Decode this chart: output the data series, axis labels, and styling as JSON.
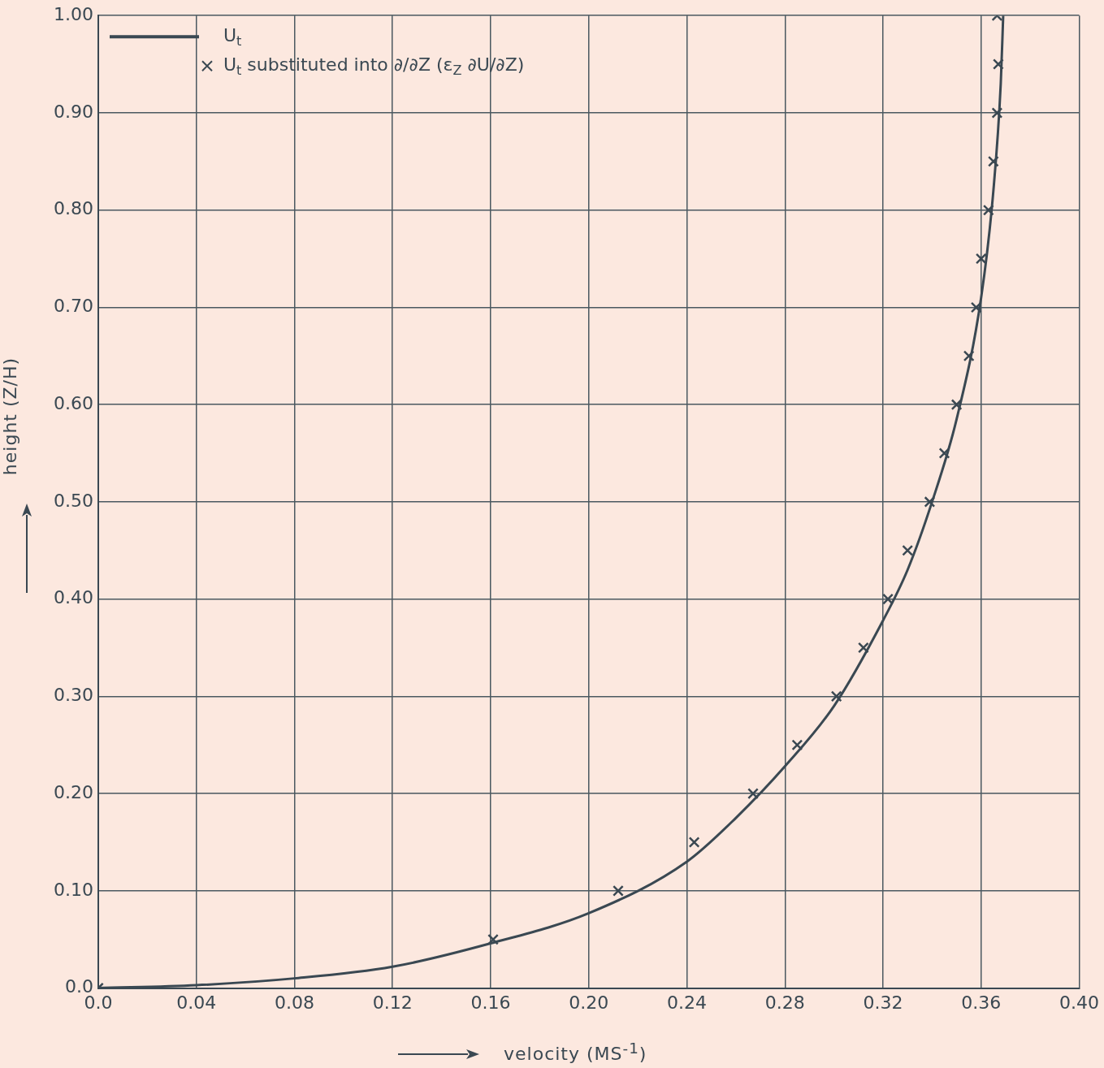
{
  "chart_data": {
    "type": "line",
    "xlabel": "velocity (MS$^{-1}$)",
    "ylabel": "height (Z/H)",
    "xlim": [
      0,
      0.4
    ],
    "ylim": [
      0,
      1
    ],
    "xticks": [
      {
        "value": 0,
        "label": "0.0"
      },
      {
        "value": 0.04,
        "label": "0.04"
      },
      {
        "value": 0.08,
        "label": "0.08"
      },
      {
        "value": 0.12,
        "label": "0.12"
      },
      {
        "value": 0.16,
        "label": "0.16"
      },
      {
        "value": 0.2,
        "label": "0.20"
      },
      {
        "value": 0.24,
        "label": "0.24"
      },
      {
        "value": 0.28,
        "label": "0.28"
      },
      {
        "value": 0.32,
        "label": "0.32"
      },
      {
        "value": 0.36,
        "label": "0.36"
      },
      {
        "value": 0.4,
        "label": "0.40"
      }
    ],
    "yticks": [
      {
        "value": 0,
        "label": "0.0"
      },
      {
        "value": 0.1,
        "label": "0.10"
      },
      {
        "value": 0.2,
        "label": "0.20"
      },
      {
        "value": 0.3,
        "label": "0.30"
      },
      {
        "value": 0.4,
        "label": "0.40"
      },
      {
        "value": 0.5,
        "label": "0.50"
      },
      {
        "value": 0.6,
        "label": "0.60"
      },
      {
        "value": 0.7,
        "label": "0.70"
      },
      {
        "value": 0.8,
        "label": "0.80"
      },
      {
        "value": 0.9,
        "label": "0.90"
      },
      {
        "value": 1,
        "label": "1.00"
      }
    ],
    "grid": true,
    "legend": "top left",
    "series": [
      {
        "name": "U$_{t}$",
        "marker": "none",
        "line_style": "solid",
        "color": "#3a4852",
        "x": [
          0,
          0.04,
          0.08,
          0.12,
          0.16,
          0.2,
          0.24,
          0.26,
          0.28,
          0.3,
          0.32,
          0.33,
          0.34,
          0.35,
          0.36,
          0.365,
          0.368,
          0.369
        ],
        "values": [
          0,
          0.003,
          0.01,
          0.022,
          0.046,
          0.077,
          0.13,
          0.175,
          0.228,
          0.29,
          0.378,
          0.43,
          0.5,
          0.585,
          0.71,
          0.82,
          0.93,
          1
        ]
      },
      {
        "name": "U$_{t}$ substituted into ∂/∂Z (ε$_{Z}$ ∂U/∂Z)",
        "type": "scatter",
        "marker": "cross",
        "color": "#3a4852",
        "x": [
          0,
          0.161,
          0.212,
          0.243,
          0.267,
          0.285,
          0.301,
          0.312,
          0.322,
          0.33,
          0.339,
          0.345,
          0.35,
          0.355,
          0.358,
          0.36,
          0.363,
          0.365,
          0.3665,
          0.367,
          0.3665
        ],
        "values": [
          0,
          0.05,
          0.1,
          0.15,
          0.2,
          0.25,
          0.3,
          0.35,
          0.4,
          0.45,
          0.5,
          0.55,
          0.6,
          0.65,
          0.7,
          0.75,
          0.8,
          0.85,
          0.9,
          0.95,
          1
        ]
      }
    ]
  }
}
